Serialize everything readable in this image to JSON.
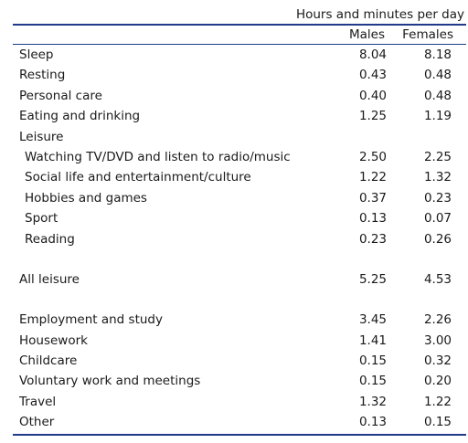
{
  "table": {
    "caption": "Hours and minutes per day",
    "columns": {
      "males": "Males",
      "females": "Females"
    },
    "rows": [
      {
        "label": "Sleep",
        "males": "8.04",
        "females": "8.18",
        "indent": false
      },
      {
        "label": "Resting",
        "males": "0.43",
        "females": "0.48",
        "indent": false
      },
      {
        "label": "Personal care",
        "males": "0.40",
        "females": "0.48",
        "indent": false
      },
      {
        "label": "Eating and drinking",
        "males": "1.25",
        "females": "1.19",
        "indent": false
      },
      {
        "label": "Leisure",
        "males": "",
        "females": "",
        "indent": false
      },
      {
        "label": "Watching TV/DVD and listen to radio/music",
        "males": "2.50",
        "females": "2.25",
        "indent": true
      },
      {
        "label": "Social life and entertainment/culture",
        "males": "1.22",
        "females": "1.32",
        "indent": true
      },
      {
        "label": "Hobbies and games",
        "males": "0.37",
        "females": "0.23",
        "indent": true
      },
      {
        "label": "Sport",
        "males": "0.13",
        "females": "0.07",
        "indent": true
      },
      {
        "label": "Reading",
        "males": "0.23",
        "females": "0.26",
        "indent": true
      },
      {
        "label": "",
        "males": "",
        "females": "",
        "indent": false,
        "spacer": true
      },
      {
        "label": "All leisure",
        "males": "5.25",
        "females": "4.53",
        "indent": false
      },
      {
        "label": "",
        "males": "",
        "females": "",
        "indent": false,
        "spacer": true
      },
      {
        "label": "Employment and study",
        "males": "3.45",
        "females": "2.26",
        "indent": false
      },
      {
        "label": "Housework",
        "males": "1.41",
        "females": "3.00",
        "indent": false
      },
      {
        "label": "Childcare",
        "males": "0.15",
        "females": "0.32",
        "indent": false
      },
      {
        "label": "Voluntary work and meetings",
        "males": "0.15",
        "females": "0.20",
        "indent": false
      },
      {
        "label": "Travel",
        "males": "1.32",
        "females": "1.22",
        "indent": false
      },
      {
        "label": "Other",
        "males": "0.13",
        "females": "0.15",
        "indent": false
      }
    ]
  },
  "colors": {
    "rule": "#1f3a8a",
    "text": "#1a1a1a"
  }
}
